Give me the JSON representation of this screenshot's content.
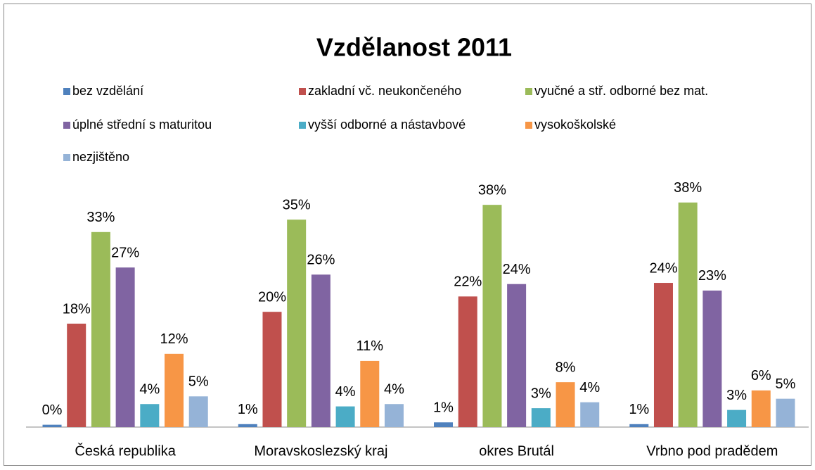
{
  "chart_data": {
    "type": "bar",
    "title": "Vzdělanost 2011",
    "categories": [
      "Česká republika",
      "Moravskoslezský kraj",
      "okres Brutál",
      "Vrbno pod pradědem"
    ],
    "series": [
      {
        "name": "bez vzdělání",
        "color": "#4f81bd",
        "values": [
          0.4,
          0.5,
          0.8,
          0.5
        ],
        "value_labels": [
          "0%",
          "1%",
          "1%",
          "1%"
        ]
      },
      {
        "name": "zakladní vč. neukončeného",
        "color": "#c0504d",
        "values": [
          17.5,
          19.5,
          22.1,
          24.4
        ],
        "value_labels": [
          "18%",
          "20%",
          "22%",
          "24%"
        ]
      },
      {
        "name": "vyučné a stř. odborné bez mat.",
        "color": "#9bbb59",
        "values": [
          33.0,
          35.1,
          37.6,
          38.0
        ],
        "value_labels": [
          "33%",
          "35%",
          "38%",
          "38%"
        ]
      },
      {
        "name": "úplné střední s maturitou",
        "color": "#8064a2",
        "values": [
          27.0,
          25.8,
          24.2,
          23.1
        ],
        "value_labels": [
          "27%",
          "26%",
          "24%",
          "23%"
        ]
      },
      {
        "name": "vyšší odborné a nástavbové",
        "color": "#4bacc6",
        "values": [
          3.9,
          3.5,
          3.2,
          2.9
        ],
        "value_labels": [
          "4%",
          "4%",
          "3%",
          "3%"
        ]
      },
      {
        "name": "vysokoškolské",
        "color": "#f79646",
        "values": [
          12.4,
          11.2,
          7.6,
          6.2
        ],
        "value_labels": [
          "12%",
          "11%",
          "8%",
          "6%"
        ]
      },
      {
        "name": "nezjištěno",
        "color": "#95b3d7",
        "values": [
          5.2,
          3.9,
          4.2,
          4.8
        ],
        "value_labels": [
          "5%",
          "4%",
          "4%",
          "5%"
        ]
      }
    ],
    "ylim": [
      0,
      40
    ]
  }
}
